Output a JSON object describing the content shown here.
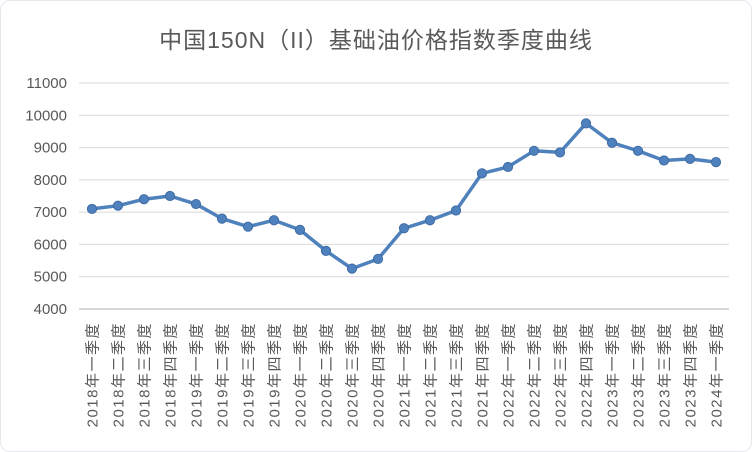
{
  "chart_data": {
    "type": "line",
    "title": "中国150N（II）基础油价格指数季度曲线",
    "categories": [
      "2018年一季度",
      "2018年二季度",
      "2018年三季度",
      "2018年四季度",
      "2019年一季度",
      "2019年二季度",
      "2019年三季度",
      "2019年四季度",
      "2020年一季度",
      "2020年二季度",
      "2020年三季度",
      "2020年四季度",
      "2021年一季度",
      "2021年二季度",
      "2021年三季度",
      "2021年四季度",
      "2022年一季度",
      "2022年二季度",
      "2022年三季度",
      "2022年四季度",
      "2023年一季度",
      "2023年二季度",
      "2023年三季度",
      "2023年四季度",
      "2024年一季度"
    ],
    "values": [
      7100,
      7200,
      7400,
      7500,
      7250,
      6800,
      6550,
      6750,
      6450,
      5800,
      5250,
      5550,
      6500,
      6750,
      7050,
      8200,
      8400,
      8900,
      8850,
      9750,
      9150,
      8900,
      8600,
      8650,
      8550
    ],
    "xlabel": "",
    "ylabel": "",
    "ylim": [
      4000,
      11000
    ],
    "yticks": [
      4000,
      5000,
      6000,
      7000,
      8000,
      9000,
      10000,
      11000
    ],
    "grid": true,
    "legend_position": "none",
    "x_label_rotation_deg": -90,
    "marker": "circle",
    "colors": {
      "line": "#4F81BD",
      "marker_fill": "#4E81BD",
      "marker_edge": "#3E6CA5",
      "gridline": "#D9D9D9",
      "axis_line": "#BFBFBF",
      "text": "#595959",
      "frame_border": "#E3E8EF",
      "background": "#FFFFFF"
    }
  }
}
